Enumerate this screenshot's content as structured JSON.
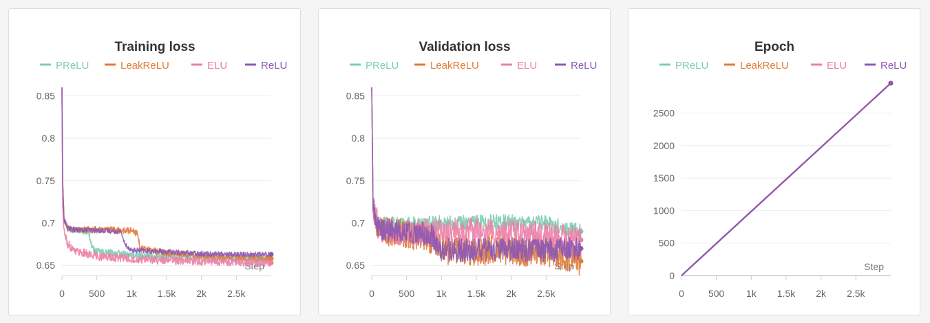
{
  "chart_data": [
    {
      "type": "line",
      "title": "Training loss",
      "xlabel": "Step",
      "ylabel": "",
      "xlim": [
        0,
        3000
      ],
      "ylim": [
        0.638,
        0.865
      ],
      "x_ticks": [
        0,
        500,
        1000,
        1500,
        2000,
        2500
      ],
      "x_tick_labels": [
        "0",
        "500",
        "1k",
        "1.5k",
        "2k",
        "2.5k"
      ],
      "y_ticks": [
        0.65,
        0.7,
        0.75,
        0.8,
        0.85
      ],
      "y_tick_labels": [
        "0.65",
        "0.7",
        "0.75",
        "0.8",
        "0.85"
      ],
      "grid": true,
      "legend_position": "top",
      "series": [
        {
          "name": "PReLU",
          "color": "#7dcdb4",
          "noise": 0.004,
          "x": [
            0,
            10,
            30,
            80,
            200,
            380,
            430,
            470,
            700,
            1000,
            1500,
            2000,
            2500,
            3000
          ],
          "y": [
            0.86,
            0.75,
            0.705,
            0.693,
            0.692,
            0.69,
            0.672,
            0.667,
            0.665,
            0.662,
            0.66,
            0.659,
            0.658,
            0.658
          ]
        },
        {
          "name": "LeakReLU",
          "color": "#e07b39",
          "noise": 0.004,
          "x": [
            0,
            10,
            30,
            80,
            200,
            600,
            1000,
            1080,
            1120,
            1250,
            1500,
            2000,
            2500,
            3000
          ],
          "y": [
            0.86,
            0.75,
            0.705,
            0.693,
            0.692,
            0.692,
            0.691,
            0.688,
            0.67,
            0.668,
            0.665,
            0.661,
            0.659,
            0.658
          ]
        },
        {
          "name": "ELU",
          "color": "#ec7fa6",
          "noise": 0.005,
          "x": [
            0,
            10,
            30,
            80,
            200,
            500,
            1000,
            1500,
            2000,
            2500,
            3000
          ],
          "y": [
            0.86,
            0.72,
            0.69,
            0.675,
            0.667,
            0.661,
            0.658,
            0.656,
            0.655,
            0.654,
            0.653
          ]
        },
        {
          "name": "ReLU",
          "color": "#8c58b4",
          "noise": 0.003,
          "x": [
            0,
            10,
            30,
            80,
            200,
            600,
            850,
            900,
            1000,
            1500,
            2000,
            2500,
            3000
          ],
          "y": [
            0.86,
            0.75,
            0.705,
            0.694,
            0.692,
            0.691,
            0.69,
            0.675,
            0.668,
            0.666,
            0.664,
            0.663,
            0.663
          ]
        }
      ]
    },
    {
      "type": "line",
      "title": "Validation loss",
      "xlabel": "Step",
      "ylabel": "",
      "xlim": [
        0,
        3000
      ],
      "ylim": [
        0.638,
        0.865
      ],
      "x_ticks": [
        0,
        500,
        1000,
        1500,
        2000,
        2500
      ],
      "x_tick_labels": [
        "0",
        "500",
        "1k",
        "1.5k",
        "2k",
        "2.5k"
      ],
      "y_ticks": [
        0.65,
        0.7,
        0.75,
        0.8,
        0.85
      ],
      "y_tick_labels": [
        "0.65",
        "0.7",
        "0.75",
        "0.8",
        "0.85"
      ],
      "grid": true,
      "legend_position": "top",
      "series": [
        {
          "name": "PReLU",
          "color": "#7dcdb4",
          "noise": 0.009,
          "x": [
            0,
            20,
            100,
            500,
            1000,
            1500,
            2000,
            2500,
            3000
          ],
          "y": [
            0.86,
            0.72,
            0.698,
            0.698,
            0.7,
            0.701,
            0.701,
            0.7,
            0.69
          ]
        },
        {
          "name": "LeakReLU",
          "color": "#e07b39",
          "noise": 0.018,
          "x": [
            0,
            20,
            100,
            500,
            900,
            1000,
            1500,
            2000,
            2500,
            3000
          ],
          "y": [
            0.86,
            0.72,
            0.69,
            0.688,
            0.68,
            0.668,
            0.668,
            0.667,
            0.667,
            0.655
          ]
        },
        {
          "name": "ELU",
          "color": "#ec7fa6",
          "noise": 0.016,
          "x": [
            0,
            20,
            100,
            500,
            1000,
            1500,
            2000,
            2500,
            3000
          ],
          "y": [
            0.86,
            0.72,
            0.695,
            0.688,
            0.69,
            0.69,
            0.688,
            0.686,
            0.68
          ]
        },
        {
          "name": "ReLU",
          "color": "#8c58b4",
          "noise": 0.014,
          "x": [
            0,
            20,
            100,
            500,
            880,
            950,
            1500,
            2000,
            2500,
            3000
          ],
          "y": [
            0.86,
            0.72,
            0.692,
            0.69,
            0.685,
            0.668,
            0.668,
            0.668,
            0.668,
            0.67
          ]
        }
      ]
    },
    {
      "type": "line",
      "title": "Epoch",
      "xlabel": "Step",
      "ylabel": "",
      "xlim": [
        0,
        3000
      ],
      "ylim": [
        0,
        2960
      ],
      "x_ticks": [
        0,
        500,
        1000,
        1500,
        2000,
        2500
      ],
      "x_tick_labels": [
        "0",
        "500",
        "1k",
        "1.5k",
        "2k",
        "2.5k"
      ],
      "y_ticks": [
        0,
        500,
        1000,
        1500,
        2000,
        2500
      ],
      "y_tick_labels": [
        "0",
        "500",
        "1000",
        "1500",
        "2000",
        "2500"
      ],
      "grid": true,
      "legend_position": "top",
      "series": [
        {
          "name": "PReLU",
          "color": "#7dcdb4",
          "noise": 0,
          "x": [
            0,
            3000
          ],
          "y": [
            0,
            2999
          ]
        },
        {
          "name": "LeakReLU",
          "color": "#e07b39",
          "noise": 0,
          "x": [
            0,
            3000
          ],
          "y": [
            0,
            2999
          ]
        },
        {
          "name": "ELU",
          "color": "#ec7fa6",
          "noise": 0,
          "x": [
            0,
            3000
          ],
          "y": [
            0,
            2999
          ]
        },
        {
          "name": "ReLU",
          "color": "#8c58b4",
          "noise": 0,
          "x": [
            0,
            3000
          ],
          "y": [
            0,
            2999
          ]
        }
      ]
    }
  ]
}
